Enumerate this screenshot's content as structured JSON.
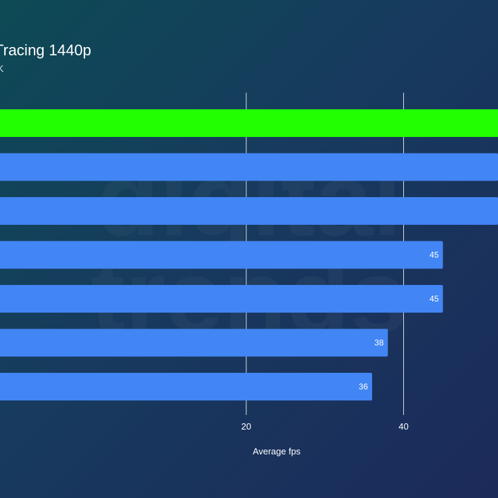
{
  "chart_data": {
    "type": "bar",
    "orientation": "horizontal",
    "title": "Tracing 1440p",
    "subtitle": "K",
    "xlabel": "Average fps",
    "ylabel": "",
    "xlim": [
      -11.3,
      52.0
    ],
    "x_ticks": [
      20,
      40
    ],
    "grid": true,
    "series": [
      {
        "values": [
          55,
          52,
          52,
          45,
          45,
          38,
          36
        ],
        "labels": [
          "",
          "",
          "",
          "45",
          "45",
          "38",
          "36"
        ],
        "colors": [
          "#22ff00",
          "#4285f4",
          "#4285f4",
          "#4285f4",
          "#4285f4",
          "#4285f4",
          "#4285f4"
        ]
      }
    ]
  },
  "colors": {
    "highlight": "#22ff00",
    "bar": "#4285f4",
    "grid": "#d8dde6"
  },
  "watermark": {
    "line1": "digital",
    "line2": "trends"
  }
}
